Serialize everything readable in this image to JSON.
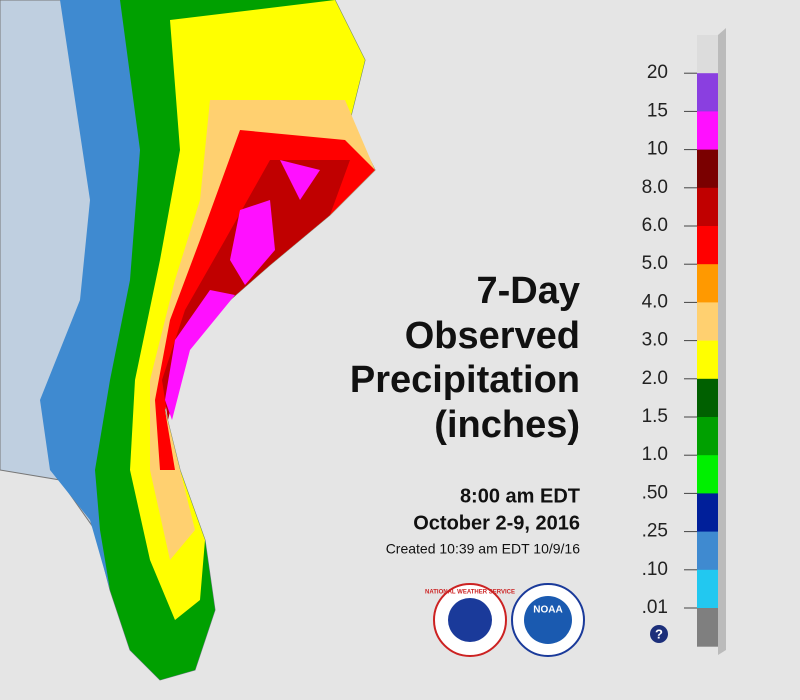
{
  "title": [
    "7-Day",
    "Observed",
    "Precipitation",
    "(inches)"
  ],
  "time": "8:00 am EDT",
  "dates": "October 2-9, 2016",
  "created": "Created 10:39 am EDT 10/9/16",
  "legend": {
    "labels": [
      "20",
      "15",
      "10",
      "8.0",
      "6.0",
      "5.0",
      "4.0",
      "3.0",
      "2.0",
      "1.5",
      "1.0",
      ".50",
      ".25",
      ".10",
      ".01"
    ],
    "colors": [
      "#dcdcdc",
      "#8a3fe0",
      "#ff10ff",
      "#7a0000",
      "#c00000",
      "#ff0000",
      "#ff9900",
      "#ffd070",
      "#ffff00",
      "#006000",
      "#00a000",
      "#00f000",
      "#001f9a",
      "#3f8ad0",
      "#22c8f0",
      "#7f7f7f"
    ],
    "help": "?"
  },
  "logos": [
    "NATIONAL WEATHER SERVICE",
    "NOAA"
  ]
}
